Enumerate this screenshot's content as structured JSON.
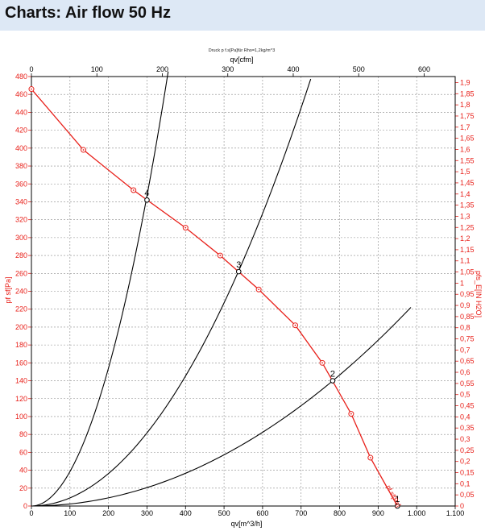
{
  "page": {
    "title": "Charts: Air flow 50 Hz"
  },
  "chart_data": {
    "type": "line",
    "caption": "Druck p f.s[Pa]für Rho=1,2kg/m^3",
    "x_top_label": "qv[cfm]",
    "x_bottom_label": "qv[m^3/h]",
    "y_left_label": "pf sf[Pa]",
    "y_right_label": "pfs_E[IN H2O]",
    "xlim": [
      0,
      1100
    ],
    "ylim": [
      0,
      480
    ],
    "x_bottom_ticks": [
      "0",
      "100",
      "200",
      "300",
      "400",
      "500",
      "600",
      "700",
      "800",
      "900",
      "1.000",
      "1.100"
    ],
    "x_top_ticks": [
      "0",
      "100",
      "200",
      "300",
      "400",
      "500",
      "600"
    ],
    "y_left_ticks": [
      "0",
      "20",
      "40",
      "60",
      "80",
      "100",
      "120",
      "140",
      "160",
      "180",
      "200",
      "220",
      "240",
      "260",
      "280",
      "300",
      "320",
      "340",
      "360",
      "380",
      "400",
      "420",
      "440",
      "460",
      "480"
    ],
    "y_right_ticks": [
      "0",
      "0,05",
      "0,1",
      "0,15",
      "0,2",
      "0,25",
      "0,3",
      "0,35",
      "0,4",
      "0,45",
      "0,5",
      "0,55",
      "0,6",
      "0,65",
      "0,7",
      "0,75",
      "0,8",
      "0,85",
      "0,9",
      "0,95",
      "1",
      "1,05",
      "1,1",
      "1,15",
      "1,2",
      "1,25",
      "1,3",
      "1,35",
      "1,4",
      "1,45",
      "1,5",
      "1,55",
      "1,6",
      "1,65",
      "1,7",
      "1,75",
      "1,8",
      "1,85",
      "1,9"
    ],
    "fan_curve": {
      "name": "pf sf[Pa]",
      "color": "#e8201a",
      "x": [
        0,
        135,
        265,
        400,
        490,
        590,
        685,
        755,
        830,
        880,
        950
      ],
      "y": [
        466,
        398,
        353,
        311,
        280,
        242,
        202,
        160,
        103,
        54,
        0
      ]
    },
    "system_curves": [
      {
        "id": "4",
        "k": 0.003853,
        "xmax": 355
      },
      {
        "id": "3",
        "k": 0.000908,
        "xmax": 725
      },
      {
        "id": "2",
        "k": 0.0002288,
        "xmax": 985
      }
    ],
    "operating_points": [
      {
        "label": "4",
        "x": 300,
        "y": 342
      },
      {
        "label": "3",
        "x": 538,
        "y": 262
      },
      {
        "label": "2",
        "x": 782,
        "y": 140
      },
      {
        "label": "1",
        "x": 950,
        "y": 0
      }
    ],
    "colors": {
      "fan": "#e8201a",
      "system": "#000000",
      "grid": "#8a8a8a",
      "title_bar": "#dde8f5"
    }
  }
}
